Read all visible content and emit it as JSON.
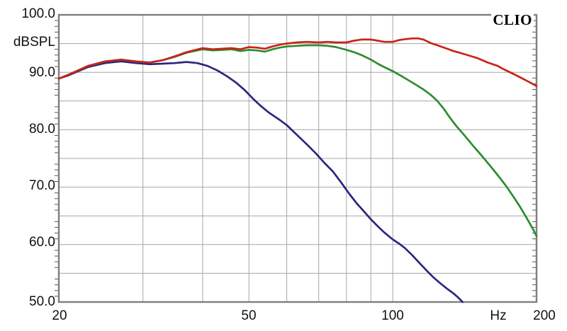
{
  "logo": "CLIO",
  "axes": {
    "y_unit": "dBSPL",
    "x_unit": "Hz",
    "y_tick_labels": [
      "100.0",
      "90.0",
      "80.0",
      "70.0",
      "60.0",
      "50.0"
    ],
    "x_tick_labels": [
      "20",
      "50",
      "100",
      "200"
    ]
  },
  "chart_data": {
    "type": "line",
    "title": "",
    "xlabel": "Hz",
    "ylabel": "dBSPL",
    "xscale": "log",
    "xlim": [
      20,
      200
    ],
    "ylim": [
      50,
      100
    ],
    "x_ticks": [
      20,
      50,
      100,
      200
    ],
    "y_ticks": [
      100,
      90,
      80,
      70,
      60,
      50
    ],
    "x_gridlines": [
      30,
      40,
      50,
      60,
      70,
      80,
      90,
      100
    ],
    "y_gridlines": [
      55,
      60,
      65,
      70,
      75,
      80,
      85,
      90,
      95
    ],
    "minor_db_tick_step": 1,
    "grid_color": "#a6a6a6",
    "border_color": "#7e7e7e",
    "background": "#ffffff",
    "legend": "none",
    "series": [
      {
        "name": "blue-curve",
        "color": "#28287E",
        "points": [
          [
            20,
            88.9
          ],
          [
            21,
            89.5
          ],
          [
            23,
            90.9
          ],
          [
            25,
            91.6
          ],
          [
            27,
            91.9
          ],
          [
            29,
            91.6
          ],
          [
            31,
            91.4
          ],
          [
            33,
            91.5
          ],
          [
            35,
            91.6
          ],
          [
            37,
            91.8
          ],
          [
            39,
            91.6
          ],
          [
            41,
            91.1
          ],
          [
            43,
            90.3
          ],
          [
            45,
            89.3
          ],
          [
            47,
            88.2
          ],
          [
            49,
            86.9
          ],
          [
            51,
            85.4
          ],
          [
            53,
            84.1
          ],
          [
            55,
            83.0
          ],
          [
            58,
            81.7
          ],
          [
            60,
            80.8
          ],
          [
            63,
            79.1
          ],
          [
            66,
            77.5
          ],
          [
            69,
            75.9
          ],
          [
            72,
            74.2
          ],
          [
            75,
            72.7
          ],
          [
            78,
            70.8
          ],
          [
            81,
            68.9
          ],
          [
            84,
            67.2
          ],
          [
            87,
            65.8
          ],
          [
            90,
            64.4
          ],
          [
            93,
            63.2
          ],
          [
            96,
            62.1
          ],
          [
            100,
            60.9
          ],
          [
            103,
            60.2
          ],
          [
            106,
            59.4
          ],
          [
            110,
            58.1
          ],
          [
            114,
            56.7
          ],
          [
            118,
            55.4
          ],
          [
            122,
            54.2
          ],
          [
            126,
            53.2
          ],
          [
            130,
            52.3
          ],
          [
            134,
            51.5
          ],
          [
            137,
            50.8
          ],
          [
            140,
            50.0
          ]
        ]
      },
      {
        "name": "green-curve",
        "color": "#2E8B2F",
        "points": [
          [
            20,
            88.9
          ],
          [
            21,
            89.6
          ],
          [
            23,
            91.1
          ],
          [
            25,
            91.9
          ],
          [
            27,
            92.2
          ],
          [
            29,
            91.9
          ],
          [
            31,
            91.7
          ],
          [
            33,
            92.1
          ],
          [
            35,
            92.7
          ],
          [
            37,
            93.4
          ],
          [
            40,
            94.0
          ],
          [
            42,
            93.8
          ],
          [
            44,
            93.9
          ],
          [
            46,
            94.0
          ],
          [
            48,
            93.7
          ],
          [
            50,
            93.9
          ],
          [
            52,
            93.8
          ],
          [
            54,
            93.6
          ],
          [
            56,
            94.0
          ],
          [
            58,
            94.3
          ],
          [
            60,
            94.5
          ],
          [
            63,
            94.6
          ],
          [
            66,
            94.7
          ],
          [
            70,
            94.7
          ],
          [
            73,
            94.6
          ],
          [
            76,
            94.4
          ],
          [
            80,
            93.9
          ],
          [
            83,
            93.5
          ],
          [
            86,
            93.0
          ],
          [
            90,
            92.2
          ],
          [
            93,
            91.5
          ],
          [
            96,
            90.9
          ],
          [
            100,
            90.2
          ],
          [
            104,
            89.4
          ],
          [
            108,
            88.6
          ],
          [
            112,
            87.8
          ],
          [
            116,
            87.0
          ],
          [
            120,
            86.1
          ],
          [
            124,
            85.0
          ],
          [
            128,
            83.6
          ],
          [
            132,
            82.0
          ],
          [
            136,
            80.6
          ],
          [
            140,
            79.4
          ],
          [
            144,
            78.2
          ],
          [
            148,
            77.0
          ],
          [
            152,
            75.9
          ],
          [
            156,
            74.8
          ],
          [
            160,
            73.7
          ],
          [
            164,
            72.6
          ],
          [
            168,
            71.5
          ],
          [
            172,
            70.4
          ],
          [
            176,
            69.2
          ],
          [
            180,
            68.0
          ],
          [
            184,
            66.8
          ],
          [
            188,
            65.5
          ],
          [
            192,
            64.2
          ],
          [
            196,
            62.9
          ],
          [
            200,
            61.5
          ]
        ]
      },
      {
        "name": "red-curve",
        "color": "#C92318",
        "points": [
          [
            20,
            88.9
          ],
          [
            21,
            89.6
          ],
          [
            23,
            91.1
          ],
          [
            25,
            91.9
          ],
          [
            27,
            92.2
          ],
          [
            29,
            91.9
          ],
          [
            31,
            91.7
          ],
          [
            33,
            92.1
          ],
          [
            35,
            92.8
          ],
          [
            37,
            93.5
          ],
          [
            40,
            94.2
          ],
          [
            42,
            94.0
          ],
          [
            44,
            94.1
          ],
          [
            46,
            94.2
          ],
          [
            48,
            94.0
          ],
          [
            50,
            94.4
          ],
          [
            52,
            94.3
          ],
          [
            54,
            94.1
          ],
          [
            56,
            94.5
          ],
          [
            58,
            94.8
          ],
          [
            60,
            95.0
          ],
          [
            63,
            95.2
          ],
          [
            66,
            95.3
          ],
          [
            70,
            95.2
          ],
          [
            73,
            95.3
          ],
          [
            76,
            95.2
          ],
          [
            80,
            95.2
          ],
          [
            83,
            95.5
          ],
          [
            86,
            95.7
          ],
          [
            90,
            95.7
          ],
          [
            93,
            95.5
          ],
          [
            96,
            95.3
          ],
          [
            100,
            95.3
          ],
          [
            103,
            95.6
          ],
          [
            107,
            95.8
          ],
          [
            110,
            95.9
          ],
          [
            113,
            95.9
          ],
          [
            116,
            95.7
          ],
          [
            120,
            95.1
          ],
          [
            124,
            94.7
          ],
          [
            127,
            94.4
          ],
          [
            130,
            94.1
          ],
          [
            134,
            93.7
          ],
          [
            138,
            93.4
          ],
          [
            142,
            93.1
          ],
          [
            146,
            92.8
          ],
          [
            150,
            92.5
          ],
          [
            154,
            92.1
          ],
          [
            158,
            91.7
          ],
          [
            162,
            91.4
          ],
          [
            166,
            91.1
          ],
          [
            170,
            90.6
          ],
          [
            175,
            90.1
          ],
          [
            180,
            89.6
          ],
          [
            185,
            89.1
          ],
          [
            190,
            88.6
          ],
          [
            195,
            88.1
          ],
          [
            200,
            87.6
          ]
        ]
      }
    ]
  }
}
